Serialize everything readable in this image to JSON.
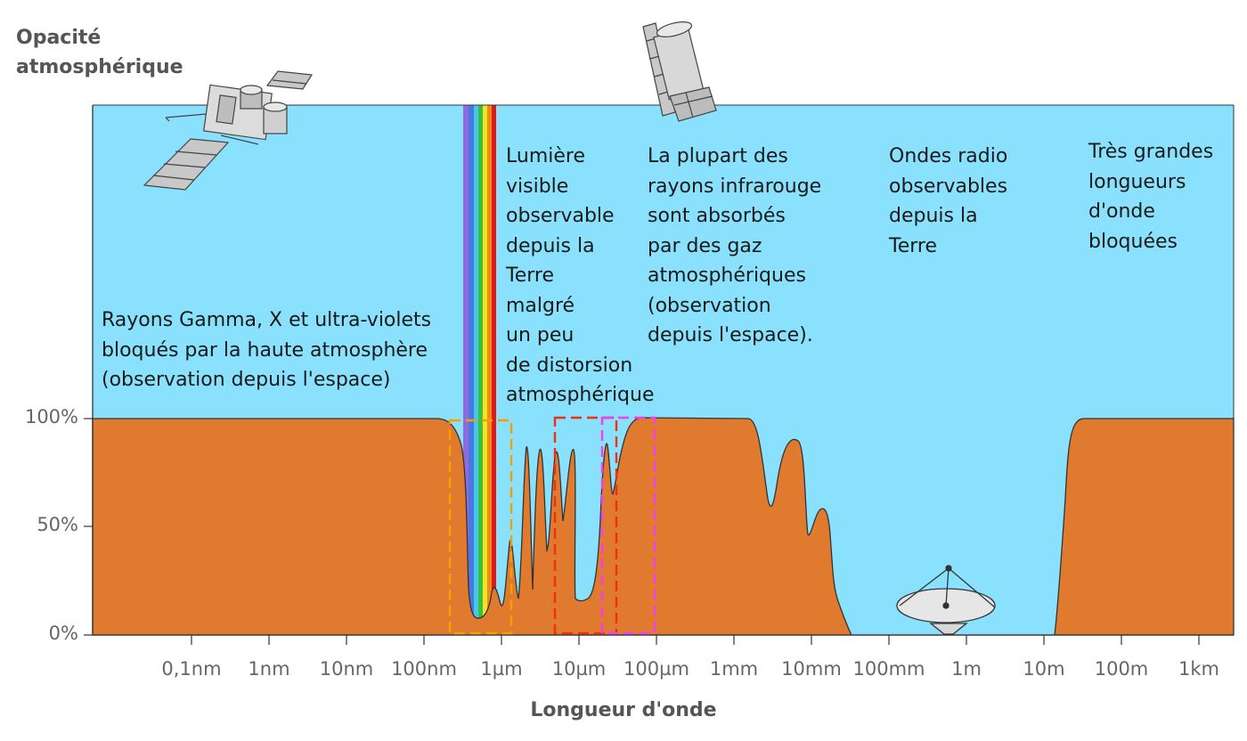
{
  "axis": {
    "y_title_lines": [
      "Opacité",
      "atmosphérique"
    ],
    "x_title": "Longueur d'onde",
    "y_ticks": [
      "100%",
      "50%",
      "0%"
    ],
    "x_ticks": [
      "0,1nm",
      "1nm",
      "10nm",
      "100nm",
      "1µm",
      "10µm",
      "100µm",
      "1mm",
      "10mm",
      "100mm",
      "1m",
      "10m",
      "100m",
      "1km"
    ]
  },
  "annotations": {
    "gamma_lines": [
      "Rayons Gamma, X et ultra-violets",
      "bloqués par la haute atmosphère",
      "(observation depuis l'espace)"
    ],
    "visible_lines": [
      "Lumière",
      "visible",
      "observable",
      "depuis la",
      "Terre",
      "malgré",
      "un peu",
      "de distorsion",
      "atmosphérique"
    ],
    "infrared_lines": [
      "La plupart des",
      "rayons infrarouge",
      "sont absorbés",
      "par des gaz",
      "atmosphériques",
      "(observation",
      "depuis l'espace)."
    ],
    "radio_lines": [
      "Ondes radio",
      "observables",
      "depuis la",
      "Terre"
    ],
    "long_lines": [
      "Très grandes",
      "longueurs",
      "d'onde",
      "bloquées"
    ]
  },
  "colors": {
    "sky": "#89E1FE",
    "opacity_fill": "#E07A2E",
    "box_orange": "#F5A000",
    "box_red": "#F03010",
    "box_magenta": "#F040F0",
    "spectrum": [
      "#7E6AE0",
      "#4070E0",
      "#40C8F0",
      "#30C030",
      "#F0E020",
      "#F08010",
      "#E01010"
    ]
  },
  "icons": {
    "satellite": "satellite-icon",
    "space_telescope": "space-telescope-icon",
    "radio_dish": "radio-dish-icon"
  }
}
